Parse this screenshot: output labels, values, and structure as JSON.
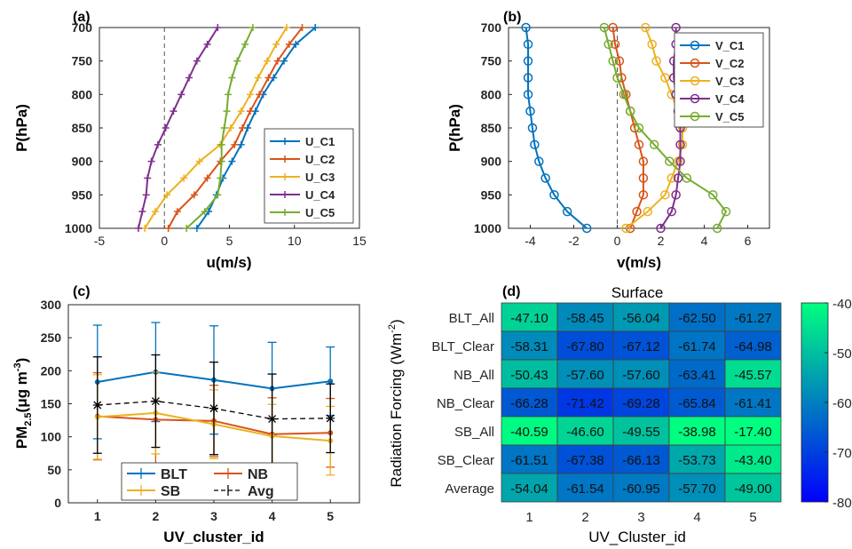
{
  "chart_data": [
    {
      "panel": "(a)",
      "type": "line",
      "xlabel": "u(m/s)",
      "ylabel": "P(hPa)",
      "xlim": [
        -5,
        15
      ],
      "ylim": [
        700,
        1000
      ],
      "y_reversed": true,
      "xticks": [
        -5,
        0,
        5,
        10,
        15
      ],
      "yticks": [
        700,
        750,
        800,
        850,
        900,
        950,
        1000
      ],
      "grid": false,
      "legend_position": "bottom-right",
      "marker": "plus",
      "y": [
        700,
        725,
        750,
        775,
        800,
        825,
        850,
        875,
        900,
        925,
        950,
        975,
        1000
      ],
      "series": [
        {
          "name": "U_C1",
          "color": "#0072BD",
          "values": [
            11.6,
            10.1,
            9.2,
            8.4,
            7.6,
            7.0,
            6.4,
            5.9,
            5.2,
            4.5,
            4.0,
            3.4,
            2.5
          ]
        },
        {
          "name": "U_C2",
          "color": "#D95319",
          "values": [
            10.6,
            9.6,
            8.7,
            8.0,
            7.3,
            6.6,
            6.0,
            5.4,
            4.3,
            3.3,
            2.3,
            1.0,
            0.3
          ]
        },
        {
          "name": "U_C3",
          "color": "#EDB120",
          "values": [
            9.4,
            8.6,
            7.9,
            7.2,
            6.6,
            5.9,
            5.1,
            4.3,
            2.7,
            1.5,
            0.2,
            -0.7,
            -1.5
          ]
        },
        {
          "name": "U_C4",
          "color": "#7E2F8E",
          "values": [
            4.1,
            3.3,
            2.5,
            1.9,
            1.3,
            0.7,
            0.1,
            -0.5,
            -1.0,
            -1.3,
            -1.4,
            -1.7,
            -2.0
          ]
        },
        {
          "name": "U_C5",
          "color": "#77AC30",
          "values": [
            6.8,
            6.2,
            5.6,
            5.2,
            4.9,
            4.8,
            4.6,
            4.4,
            4.4,
            4.3,
            4.1,
            3.1,
            1.7
          ]
        }
      ]
    },
    {
      "panel": "(b)",
      "type": "line",
      "xlabel": "v(m/s)",
      "ylabel": "P(hPa)",
      "xlim": [
        -5,
        7
      ],
      "ylim": [
        700,
        1000
      ],
      "y_reversed": true,
      "xticks": [
        -4,
        -2,
        0,
        2,
        4,
        6
      ],
      "yticks": [
        700,
        750,
        800,
        850,
        900,
        950,
        1000
      ],
      "grid": false,
      "legend_position": "top-right",
      "marker": "circle",
      "y": [
        700,
        725,
        750,
        775,
        800,
        825,
        850,
        875,
        900,
        925,
        950,
        975,
        1000
      ],
      "series": [
        {
          "name": "V_C1",
          "color": "#0072BD",
          "values": [
            -4.2,
            -4.1,
            -4.1,
            -4.1,
            -4.1,
            -4.0,
            -3.9,
            -3.8,
            -3.6,
            -3.3,
            -2.9,
            -2.3,
            -1.4
          ]
        },
        {
          "name": "V_C2",
          "color": "#D95319",
          "values": [
            -0.2,
            -0.1,
            0.1,
            0.2,
            0.4,
            0.6,
            0.8,
            1.0,
            1.2,
            1.2,
            1.2,
            0.9,
            0.6
          ]
        },
        {
          "name": "V_C3",
          "color": "#EDB120",
          "values": [
            1.3,
            1.6,
            1.8,
            2.2,
            2.5,
            2.8,
            3.0,
            3.0,
            2.8,
            2.5,
            2.2,
            1.4,
            0.4
          ]
        },
        {
          "name": "V_C4",
          "color": "#7E2F8E",
          "values": [
            2.7,
            2.7,
            2.6,
            2.6,
            2.7,
            2.8,
            2.9,
            2.9,
            2.9,
            2.8,
            2.7,
            2.5,
            2.0
          ]
        },
        {
          "name": "V_C5",
          "color": "#77AC30",
          "values": [
            -0.6,
            -0.4,
            -0.2,
            0.0,
            0.3,
            0.6,
            1.0,
            1.7,
            2.4,
            3.2,
            4.4,
            5.0,
            4.6
          ]
        }
      ]
    },
    {
      "panel": "(c)",
      "type": "line",
      "xlabel": "UV_cluster_id",
      "ylabel_main": "PM",
      "ylabel_sub": "2.5",
      "ylabel_rest": "(μg m",
      "ylabel_sup": "-3",
      "ylabel_end": ")",
      "xlim": [
        0.5,
        5.5
      ],
      "ylim": [
        0,
        300
      ],
      "xticks": [
        1,
        2,
        3,
        4,
        5
      ],
      "yticks": [
        0,
        50,
        100,
        150,
        200,
        250,
        300
      ],
      "grid": false,
      "legend_position": "bottom",
      "categories": [
        1,
        2,
        3,
        4,
        5
      ],
      "series": [
        {
          "name": "BLT",
          "color": "#0072BD",
          "dashed": false,
          "values": [
            183,
            198,
            186,
            173,
            184
          ],
          "err": [
            86,
            75,
            82,
            70,
            52
          ]
        },
        {
          "name": "NB",
          "color": "#D95319",
          "dashed": false,
          "values": [
            131,
            126,
            124,
            104,
            106
          ],
          "err": [
            66,
            72,
            54,
            55,
            52
          ]
        },
        {
          "name": "SB",
          "color": "#EDB120",
          "dashed": false,
          "values": [
            130,
            136,
            119,
            101,
            94
          ],
          "err": [
            64,
            62,
            52,
            48,
            52
          ]
        },
        {
          "name": "Avg",
          "color": "#000000",
          "dashed": true,
          "values": [
            148,
            154,
            143,
            127,
            128
          ],
          "err": [
            73,
            70,
            70,
            68,
            52
          ]
        }
      ]
    },
    {
      "panel": "(d)",
      "type": "heatmap",
      "title": "Surface",
      "xlabel": "UV_Cluster_id",
      "ylabel_main": "Radiation  Forcing  (Wm",
      "ylabel_sup": "-2",
      "ylabel_end": ")",
      "x_categories": [
        "1",
        "2",
        "3",
        "4",
        "5"
      ],
      "y_categories": [
        "BLT_All",
        "BLT_Clear",
        "NB_All",
        "NB_Clear",
        "SB_All",
        "SB_Clear",
        "Average"
      ],
      "values": [
        [
          "-47.10",
          "-58.45",
          "-56.04",
          "-62.50",
          "-61.27"
        ],
        [
          "-58.31",
          "-67.80",
          "-67.12",
          "-61.74",
          "-64.98"
        ],
        [
          "-50.43",
          "-57.60",
          "-57.60",
          "-63.41",
          "-45.57"
        ],
        [
          "-66.28",
          "-71.42",
          "-69.28",
          "-65.84",
          "-61.41"
        ],
        [
          "-40.59",
          "-46.60",
          "-49.55",
          "-38.98",
          "-17.40"
        ],
        [
          "-61.51",
          "-67.38",
          "-66.13",
          "-53.73",
          "-43.40"
        ],
        [
          "-54.04",
          "-61.54",
          "-60.95",
          "-57.70",
          "-49.00"
        ]
      ],
      "colorbar_ticks": [
        -40,
        -50,
        -60,
        -70,
        -80
      ],
      "colorbar_range": [
        -80,
        -40
      ]
    }
  ]
}
